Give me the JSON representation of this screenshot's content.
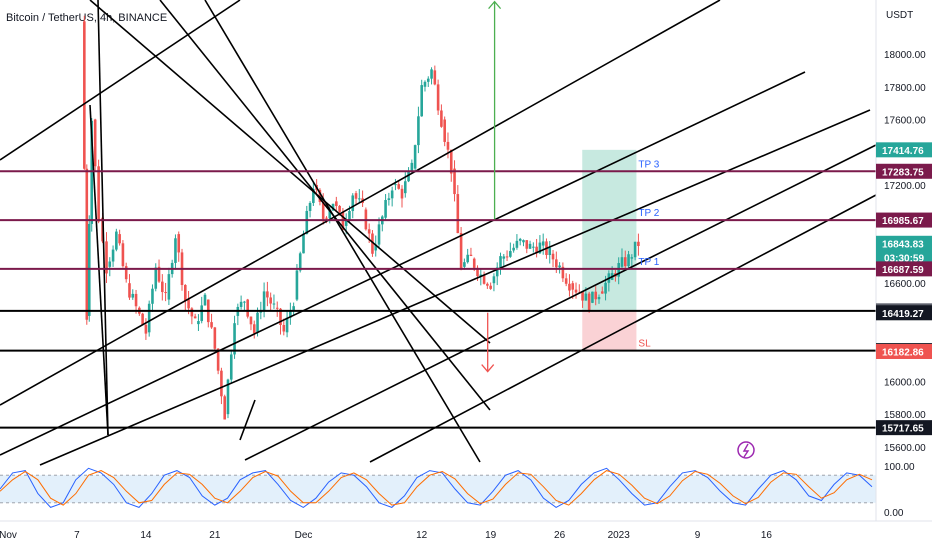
{
  "header": {
    "title": "Bitcoin / TetherUS, 4h, BINANCE"
  },
  "currency_label": "USDT",
  "colors": {
    "up": "#26a69a",
    "down": "#ef5350",
    "level": "#7b1a4b",
    "tp_zone": "#b9e4d8",
    "sl_zone": "#f9cdd0",
    "arrow_up": "#4caf50",
    "arrow_down": "#ef5350",
    "stoch_k": "#2962ff",
    "stoch_d": "#ff6d00",
    "stoch_band": "#e3f0fb",
    "alert": "#9c27b0"
  },
  "chart_data": [
    {
      "type": "candlestick",
      "title": "Bitcoin / TetherUS, 4h, BINANCE",
      "ylim": [
        15520,
        18330
      ],
      "y_ticks": [
        15600,
        15800,
        16000,
        16200,
        16400,
        16600,
        16800,
        17000,
        17200,
        17400,
        17600,
        17800,
        18000
      ],
      "y_tick_labels": [
        "15600.00",
        "15800.00",
        "16000.00",
        "16200.00",
        "16400.00",
        "16600.00",
        "16800.00",
        "17000.00",
        "17200.00",
        "17400.00",
        "17600.00",
        "17800.00",
        "18000.00"
      ],
      "x_ticks": [
        {
          "label": "Nov",
          "day": 0
        },
        {
          "label": "7",
          "day": 7
        },
        {
          "label": "14",
          "day": 14
        },
        {
          "label": "21",
          "day": 21
        },
        {
          "label": "Dec",
          "day": 30
        },
        {
          "label": "12",
          "day": 42
        },
        {
          "label": "19",
          "day": 49
        },
        {
          "label": "26",
          "day": 56
        },
        {
          "label": "2023",
          "day": 62
        },
        {
          "label": "9",
          "day": 70
        },
        {
          "label": "16",
          "day": 77
        }
      ],
      "candles_close_path": [
        [
          7.5,
          18200
        ],
        [
          8.0,
          16400
        ],
        [
          8.5,
          17600
        ],
        [
          9.2,
          17000
        ],
        [
          10,
          16700
        ],
        [
          11,
          16900
        ],
        [
          12,
          16600
        ],
        [
          13,
          16450
        ],
        [
          14,
          16300
        ],
        [
          15,
          16700
        ],
        [
          16,
          16500
        ],
        [
          17,
          16900
        ],
        [
          18,
          16500
        ],
        [
          19,
          16350
        ],
        [
          20,
          16500
        ],
        [
          21,
          16200
        ],
        [
          22,
          15800
        ],
        [
          23,
          16400
        ],
        [
          24,
          16500
        ],
        [
          25,
          16300
        ],
        [
          26,
          16550
        ],
        [
          27,
          16450
        ],
        [
          28,
          16300
        ],
        [
          29,
          16500
        ],
        [
          30,
          16900
        ],
        [
          31,
          17200
        ],
        [
          32,
          17000
        ],
        [
          33,
          17100
        ],
        [
          34,
          16950
        ],
        [
          35,
          17150
        ],
        [
          36,
          17050
        ],
        [
          37,
          16800
        ],
        [
          38,
          17000
        ],
        [
          39,
          17200
        ],
        [
          40,
          17150
        ],
        [
          41,
          17300
        ],
        [
          42,
          17800
        ],
        [
          43,
          17900
        ],
        [
          44,
          17600
        ],
        [
          45,
          17300
        ],
        [
          46,
          16700
        ],
        [
          47,
          16750
        ],
        [
          48,
          16650
        ],
        [
          49,
          16600
        ],
        [
          50,
          16750
        ],
        [
          51,
          16800
        ],
        [
          52,
          16850
        ],
        [
          53,
          16820
        ],
        [
          54,
          16830
        ],
        [
          55,
          16780
        ],
        [
          56,
          16700
        ],
        [
          57,
          16600
        ],
        [
          58,
          16550
        ],
        [
          59,
          16480
        ],
        [
          60,
          16550
        ],
        [
          61,
          16620
        ],
        [
          62,
          16700
        ],
        [
          63,
          16750
        ],
        [
          64,
          16844
        ]
      ],
      "price_levels": [
        {
          "label": "17283.75",
          "value": 17283.75,
          "line": "level"
        },
        {
          "label": "16985.67",
          "value": 16985.67,
          "line": "level"
        },
        {
          "label": "16687.59",
          "value": 16687.59,
          "line": "level"
        },
        {
          "label": "16431.23",
          "value": 16431.23,
          "line": "black"
        },
        {
          "label": "16188.17",
          "value": 16188.17,
          "line": "black"
        },
        {
          "label": "15717.65",
          "value": 15717.65,
          "line": "black"
        }
      ],
      "price_tags": [
        {
          "label": "17414.76",
          "value": 17414.76,
          "bg": "#26a69a",
          "fg": "#ffffff"
        },
        {
          "label": "17283.75",
          "value": 17283.75,
          "bg": "#7b1a4b",
          "fg": "#ffffff"
        },
        {
          "label": "16985.67",
          "value": 16985.67,
          "bg": "#7b1a4b",
          "fg": "#ffffff"
        },
        {
          "label": "16843.83",
          "value": 16843.83,
          "bg": "#26a69a",
          "fg": "#ffffff"
        },
        {
          "label": "16687.59",
          "value": 16687.59,
          "bg": "#7b1a4b",
          "fg": "#ffffff"
        },
        {
          "label": "16431.23",
          "value": 16431.23,
          "bg": "#5d606b",
          "fg": "#ffffff"
        },
        {
          "label": "16419.27",
          "value": 16419.27,
          "bg": "#131722",
          "fg": "#ffffff"
        },
        {
          "label": "16188.17",
          "value": 16188.17,
          "bg": "#131722",
          "fg": "#ffffff"
        },
        {
          "label": "16182.86",
          "value": 16182.86,
          "bg": "#ef5350",
          "fg": "#ffffff"
        },
        {
          "label": "15717.65",
          "value": 15717.65,
          "bg": "#131722",
          "fg": "#ffffff"
        }
      ],
      "countdown": "03:30:59",
      "trade_zone": {
        "day_start": 58.3,
        "day_end": 63.8,
        "entry": 16431.23,
        "target": 17414.76,
        "stop": 16182.86,
        "labels": [
          {
            "text": "TP 3",
            "value": 17283.75
          },
          {
            "text": "TP 2",
            "value": 16985.67
          },
          {
            "text": "TP 1",
            "value": 16687.59
          },
          {
            "text": "SL",
            "value": 16188.17
          }
        ]
      },
      "arrows": [
        {
          "dir": "up",
          "day": 49.4,
          "from": 16990,
          "to": 18320
        },
        {
          "dir": "down",
          "day": 48.7,
          "from": 16420,
          "to": 16060
        }
      ]
    },
    {
      "type": "line",
      "title": "",
      "ylim": [
        0,
        100
      ],
      "y_tick_labels": [
        "100.00",
        "0.00"
      ],
      "band": [
        20,
        80
      ],
      "series": [
        {
          "values": [
            50,
            85,
            90,
            40,
            10,
            20,
            70,
            95,
            85,
            60,
            20,
            10,
            40,
            80,
            90,
            75,
            35,
            15,
            30,
            70,
            85,
            90,
            60,
            25,
            10,
            30,
            65,
            85,
            80,
            55,
            20,
            10,
            35,
            75,
            90,
            85,
            50,
            20,
            15,
            45,
            80,
            90,
            70,
            30,
            10,
            25,
            60,
            85,
            95,
            70,
            40,
            15,
            20,
            55,
            85,
            90,
            75,
            45,
            20,
            15,
            50,
            80,
            90,
            70,
            35,
            25,
            60,
            85,
            80,
            55
          ]
        },
        {
          "values": [
            45,
            70,
            88,
            70,
            30,
            15,
            40,
            80,
            90,
            75,
            45,
            20,
            25,
            60,
            85,
            82,
            60,
            30,
            20,
            45,
            75,
            88,
            78,
            45,
            20,
            20,
            45,
            75,
            85,
            70,
            40,
            15,
            20,
            55,
            80,
            88,
            72,
            40,
            18,
            28,
            60,
            85,
            82,
            55,
            25,
            15,
            40,
            70,
            90,
            82,
            58,
            30,
            18,
            35,
            68,
            88,
            82,
            62,
            35,
            18,
            32,
            65,
            85,
            82,
            55,
            30,
            42,
            70,
            82,
            70
          ]
        }
      ]
    }
  ]
}
